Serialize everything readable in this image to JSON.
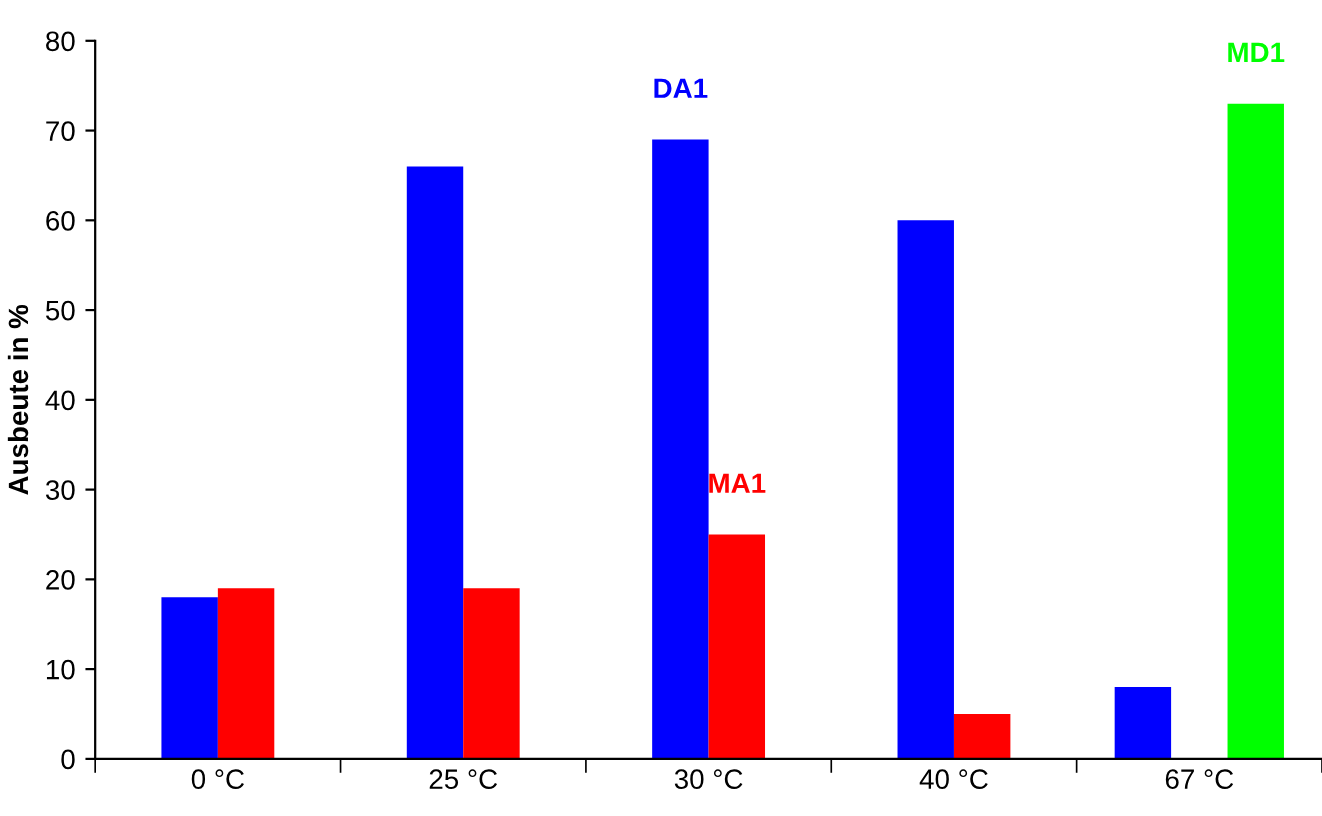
{
  "chart_data": {
    "type": "bar",
    "ylabel": "Ausbeute in %",
    "categories": [
      "0 °C",
      "25 °C",
      "30 °C",
      "40 °C",
      "67 °C"
    ],
    "series": [
      {
        "name": "DA1",
        "color": "#0000ff",
        "values": [
          18,
          66,
          69,
          60,
          8
        ]
      },
      {
        "name": "MA1",
        "color": "#ff0000",
        "values": [
          19,
          19,
          25,
          5,
          null
        ]
      },
      {
        "name": "MD1",
        "color": "#00ff00",
        "values": [
          null,
          null,
          null,
          null,
          73
        ]
      }
    ],
    "ylim": [
      0,
      80
    ],
    "yticks": [
      0,
      10,
      20,
      30,
      40,
      50,
      60,
      70,
      80
    ],
    "grid": false,
    "legend": false
  }
}
